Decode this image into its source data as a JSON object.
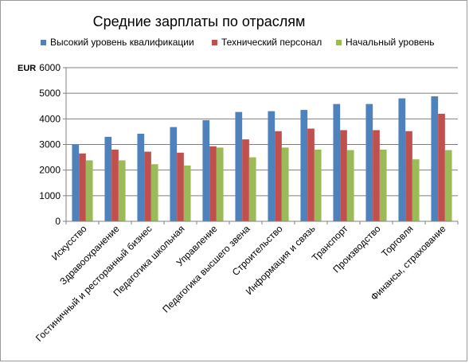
{
  "chart_data": {
    "type": "bar",
    "title": "Средние зарплаты по отраслям",
    "ylabel": "EUR",
    "xlabel": "",
    "ylim": [
      0,
      6000
    ],
    "yticks": [
      0,
      1000,
      2000,
      3000,
      4000,
      5000,
      6000
    ],
    "grid": true,
    "legend_position": "top",
    "categories": [
      "Искусство",
      "Здравоохранение",
      "Гостиничный и ресторанный бизнес",
      "Педагогика школьная",
      "Управление",
      "Педагогика высшего звена",
      "Строительство",
      "Информация и связь",
      "Транспорт",
      "Производство",
      "Торговля",
      "Финансы, страхование"
    ],
    "series": [
      {
        "name": "Высокий уровень квалификации",
        "color": "#4f81bd",
        "values": [
          3000,
          3300,
          3420,
          3680,
          3950,
          4270,
          4300,
          4350,
          4580,
          4580,
          4800,
          4880
        ]
      },
      {
        "name": "Технический персонал",
        "color": "#c0504d",
        "values": [
          2650,
          2800,
          2720,
          2680,
          2930,
          3200,
          3520,
          3620,
          3560,
          3560,
          3520,
          4200
        ]
      },
      {
        "name": "Начальный уровень",
        "color": "#9bbb59",
        "values": [
          2380,
          2380,
          2230,
          2180,
          2880,
          2500,
          2880,
          2800,
          2780,
          2800,
          2420,
          2780
        ]
      }
    ]
  }
}
